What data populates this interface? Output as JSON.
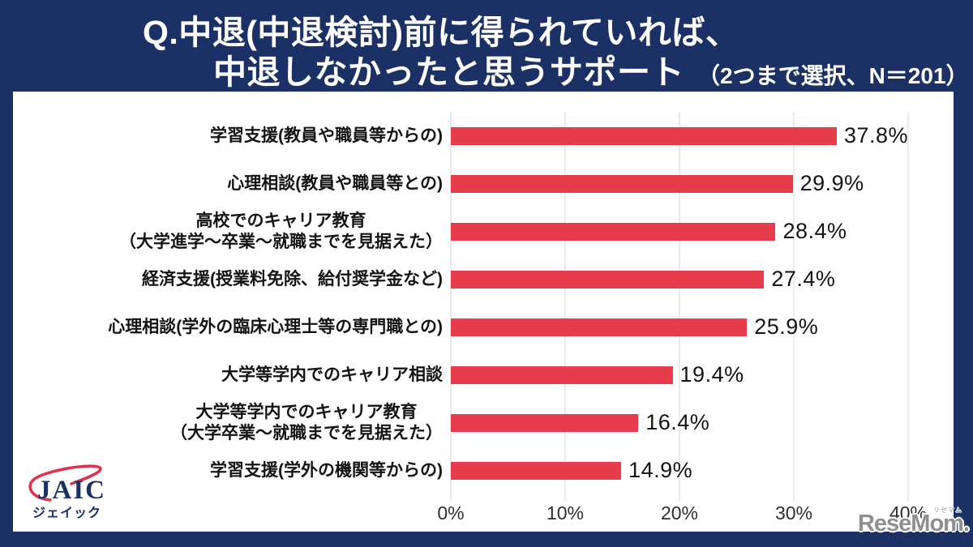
{
  "title": {
    "line1": "Q.中退(中退検討)前に得られていれば、",
    "line2": "中退しなかったと思うサポート",
    "note": "（2つまで選択、N＝201）"
  },
  "chart_data": {
    "type": "bar",
    "orientation": "horizontal",
    "categories": [
      {
        "lines": [
          "学習支援(教員や職員等からの)"
        ]
      },
      {
        "lines": [
          "心理相談(教員や職員等との)"
        ]
      },
      {
        "lines": [
          "高校でのキャリア教育",
          "（大学進学～卒業～就職までを見据えた）"
        ]
      },
      {
        "lines": [
          "経済支援(授業料免除、給付奨学金など)"
        ]
      },
      {
        "lines": [
          "心理相談(学外の臨床心理士等の専門職との)"
        ]
      },
      {
        "lines": [
          "大学等学内でのキャリア相談"
        ]
      },
      {
        "lines": [
          "大学等学内でのキャリア教育",
          "（大学卒業～就職までを見据えた）"
        ]
      },
      {
        "lines": [
          "学習支援(学外の機関等からの)"
        ]
      }
    ],
    "values": [
      37.8,
      29.9,
      28.4,
      27.4,
      25.9,
      19.4,
      16.4,
      14.9
    ],
    "value_labels": [
      "37.8%",
      "29.9%",
      "28.4%",
      "27.4%",
      "25.9%",
      "19.4%",
      "16.4%",
      "14.9%"
    ],
    "xlim": [
      0,
      40
    ],
    "x_ticks": [
      "0%",
      "10%",
      "20%",
      "30%",
      "40%"
    ],
    "grid": true,
    "legend": "none",
    "bar_color": "#e63c4b"
  },
  "branding": {
    "logo_text": "JAIC",
    "logo_subtext": "ジェイック",
    "watermark_text": "ReseMom.",
    "watermark_ruby": "リセマム"
  },
  "colors": {
    "background_navy": "#1b3166",
    "panel_white": "#ffffff",
    "bar_red": "#e63c4b",
    "gridline_gray": "#d6d6d6",
    "label_black": "#141414",
    "title_white": "#ffffff",
    "logo_navy": "#1b3166",
    "logo_red": "#e0304a",
    "watermark_gray": "#8f8f8f"
  }
}
